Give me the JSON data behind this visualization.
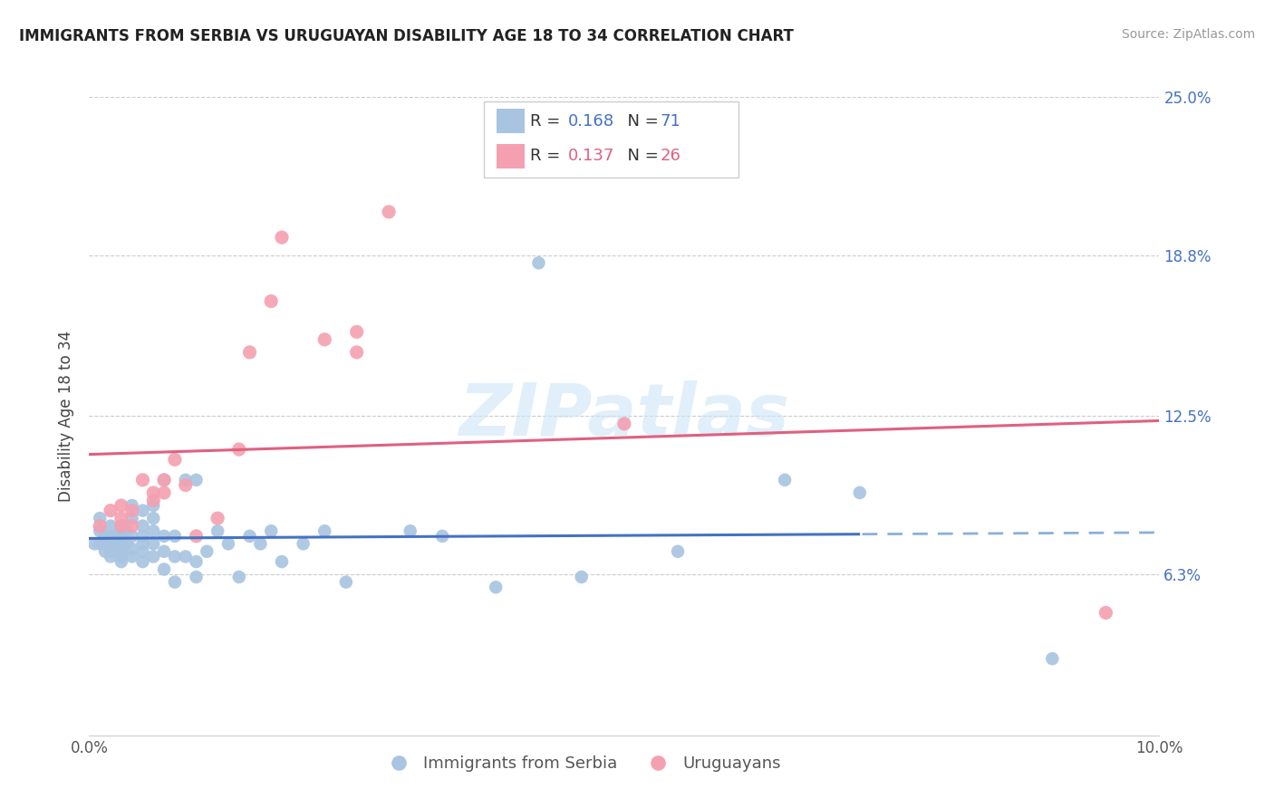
{
  "title": "IMMIGRANTS FROM SERBIA VS URUGUAYAN DISABILITY AGE 18 TO 34 CORRELATION CHART",
  "source": "Source: ZipAtlas.com",
  "ylabel": "Disability Age 18 to 34",
  "xlim": [
    0.0,
    0.1
  ],
  "ylim": [
    0.0,
    0.25
  ],
  "ytick_labels_right": [
    "25.0%",
    "18.8%",
    "12.5%",
    "6.3%"
  ],
  "ytick_values_right": [
    0.25,
    0.188,
    0.125,
    0.063
  ],
  "serbia_R": 0.168,
  "serbia_N": 71,
  "uruguay_R": 0.137,
  "uruguay_N": 26,
  "serbia_color": "#a8c4e0",
  "uruguay_color": "#f4a0b0",
  "serbia_line_color": "#4472c4",
  "uruguay_line_color": "#e06080",
  "serbia_line_dashed_color": "#8ab0d8",
  "watermark": "ZIPatlas",
  "serbia_x": [
    0.0005,
    0.001,
    0.001,
    0.001,
    0.0015,
    0.0015,
    0.0015,
    0.002,
    0.002,
    0.002,
    0.002,
    0.002,
    0.0025,
    0.0025,
    0.003,
    0.003,
    0.003,
    0.003,
    0.003,
    0.003,
    0.003,
    0.0035,
    0.0035,
    0.004,
    0.004,
    0.004,
    0.004,
    0.004,
    0.005,
    0.005,
    0.005,
    0.005,
    0.005,
    0.005,
    0.006,
    0.006,
    0.006,
    0.006,
    0.006,
    0.007,
    0.007,
    0.007,
    0.007,
    0.008,
    0.008,
    0.008,
    0.009,
    0.009,
    0.01,
    0.01,
    0.01,
    0.011,
    0.012,
    0.013,
    0.014,
    0.015,
    0.016,
    0.017,
    0.018,
    0.02,
    0.022,
    0.024,
    0.03,
    0.033,
    0.038,
    0.042,
    0.046,
    0.055,
    0.065,
    0.072,
    0.09
  ],
  "serbia_y": [
    0.075,
    0.075,
    0.08,
    0.085,
    0.072,
    0.075,
    0.078,
    0.07,
    0.072,
    0.075,
    0.078,
    0.082,
    0.073,
    0.078,
    0.068,
    0.07,
    0.072,
    0.075,
    0.078,
    0.08,
    0.082,
    0.075,
    0.08,
    0.07,
    0.073,
    0.078,
    0.085,
    0.09,
    0.068,
    0.072,
    0.075,
    0.078,
    0.082,
    0.088,
    0.07,
    0.075,
    0.08,
    0.085,
    0.09,
    0.065,
    0.072,
    0.078,
    0.1,
    0.06,
    0.07,
    0.078,
    0.07,
    0.1,
    0.062,
    0.068,
    0.1,
    0.072,
    0.08,
    0.075,
    0.062,
    0.078,
    0.075,
    0.08,
    0.068,
    0.075,
    0.08,
    0.06,
    0.08,
    0.078,
    0.058,
    0.185,
    0.062,
    0.072,
    0.1,
    0.095,
    0.03
  ],
  "uruguay_x": [
    0.001,
    0.002,
    0.003,
    0.003,
    0.003,
    0.004,
    0.004,
    0.005,
    0.006,
    0.006,
    0.007,
    0.007,
    0.008,
    0.009,
    0.01,
    0.012,
    0.014,
    0.015,
    0.017,
    0.018,
    0.022,
    0.025,
    0.025,
    0.028,
    0.05,
    0.095
  ],
  "uruguay_y": [
    0.082,
    0.088,
    0.082,
    0.085,
    0.09,
    0.082,
    0.088,
    0.1,
    0.092,
    0.095,
    0.1,
    0.095,
    0.108,
    0.098,
    0.078,
    0.085,
    0.112,
    0.15,
    0.17,
    0.195,
    0.155,
    0.15,
    0.158,
    0.205,
    0.122,
    0.048
  ]
}
